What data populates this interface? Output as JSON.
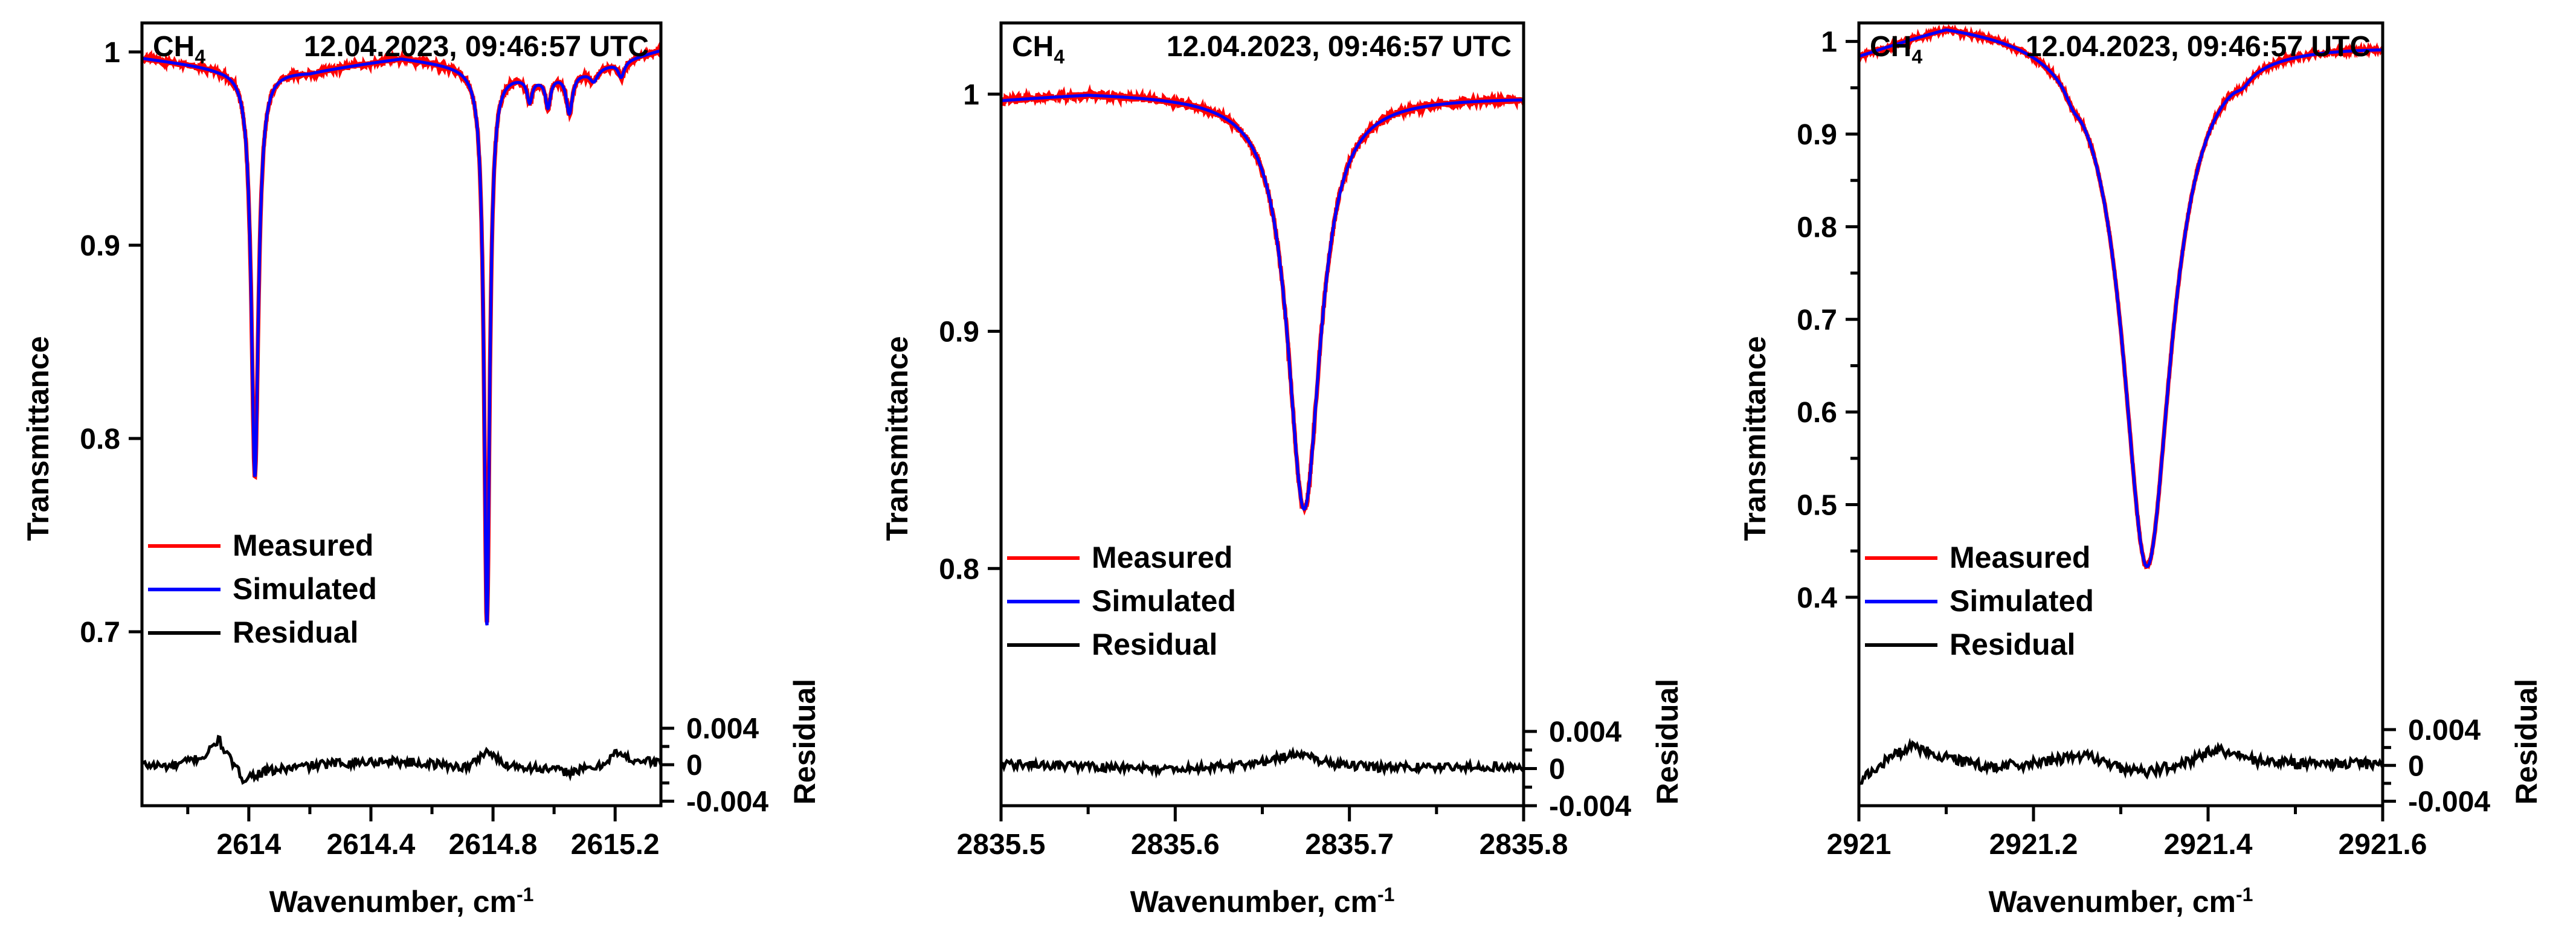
{
  "figure": {
    "background": "#ffffff"
  },
  "chart_data": [
    {
      "type": "line",
      "species": "CH",
      "species_subscript": "4",
      "timestamp": "12.04.2023, 09:46:57 UTC",
      "xlabel": "Wavenumber, cm",
      "xlabel_superscript": "-1",
      "ylabel": "Transmittance",
      "y2label": "Residual",
      "xlim": [
        2613.65,
        2615.35
      ],
      "ylim": [
        0.61,
        1.015
      ],
      "residual_lim": [
        -0.0045,
        0.0065
      ],
      "x_ticks": [
        2614,
        2614.4,
        2614.8,
        2615.2
      ],
      "x_tick_labels": [
        "2614",
        "2614.4",
        "2614.8",
        "2615.2"
      ],
      "x_minor_ticks": [
        2613.8,
        2614.2,
        2614.6,
        2615.0
      ],
      "y_ticks": [
        0.7,
        0.8,
        0.9,
        1.0
      ],
      "y_tick_labels": [
        "0.7",
        "0.8",
        "0.9",
        "1"
      ],
      "residual_ticks": [
        0.004,
        0,
        -0.004
      ],
      "residual_tick_labels": [
        "0.004",
        "0",
        "-0.004"
      ],
      "residual_minor_ticks": [
        0.002,
        -0.002
      ],
      "legend": {
        "placement": "lower-left",
        "entries": [
          {
            "label": "Measured",
            "color": "#ff0000"
          },
          {
            "label": "Simulated",
            "color": "#0000ff"
          },
          {
            "label": "Residual",
            "color": "#000000"
          }
        ]
      },
      "baseline": {
        "x": [
          2613.65,
          2613.9,
          2614.2,
          2614.5,
          2614.7,
          2614.95,
          2615.1,
          2615.35
        ],
        "y": [
          0.997,
          0.992,
          0.99,
          0.997,
          0.993,
          0.987,
          0.99,
          1.001
        ]
      },
      "lines": [
        {
          "center": 2614.02,
          "depth": 0.211,
          "width": 0.014
        },
        {
          "center": 2614.78,
          "depth": 0.288,
          "width": 0.011
        },
        {
          "center": 2614.92,
          "depth": 0.012,
          "width": 0.01
        },
        {
          "center": 2614.98,
          "depth": 0.015,
          "width": 0.01
        },
        {
          "center": 2615.05,
          "depth": 0.02,
          "width": 0.012
        },
        {
          "center": 2615.13,
          "depth": 0.006,
          "width": 0.015
        },
        {
          "center": 2615.22,
          "depth": 0.008,
          "width": 0.012
        }
      ],
      "residual": {
        "x": [
          2613.65,
          2613.75,
          2613.82,
          2613.86,
          2613.9,
          2613.94,
          2613.98,
          2614.05,
          2614.15,
          2614.3,
          2614.45,
          2614.6,
          2614.72,
          2614.78,
          2614.83,
          2614.95,
          2615.05,
          2615.15,
          2615.2,
          2615.25,
          2615.35
        ],
        "y": [
          0.0,
          -0.0002,
          0.0006,
          0.001,
          0.0028,
          0.0005,
          -0.0015,
          -0.0008,
          -0.0003,
          0.0002,
          0.0004,
          0.0001,
          -0.0003,
          0.0016,
          0.0001,
          -0.0004,
          -0.0008,
          -0.0002,
          0.0013,
          0.0006,
          0.0002
        ]
      },
      "residual_noise": 0.0005
    },
    {
      "type": "line",
      "species": "CH",
      "species_subscript": "4",
      "timestamp": "12.04.2023, 09:46:57 UTC",
      "xlabel": "Wavenumber, cm",
      "xlabel_superscript": "-1",
      "ylabel": "Transmittance",
      "y2label": "Residual",
      "xlim": [
        2835.5,
        2835.8
      ],
      "ylim": [
        0.7,
        1.03
      ],
      "residual_lim": [
        -0.004,
        0.0068
      ],
      "x_ticks": [
        2835.5,
        2835.6,
        2835.7,
        2835.8
      ],
      "x_tick_labels": [
        "2835.5",
        "2835.6",
        "2835.7",
        "2835.8"
      ],
      "x_minor_ticks": [
        2835.55,
        2835.65,
        2835.75
      ],
      "y_ticks": [
        0.8,
        0.9,
        1.0
      ],
      "y_tick_labels": [
        "0.8",
        "0.9",
        "1"
      ],
      "residual_ticks": [
        0.004,
        0,
        -0.004
      ],
      "residual_tick_labels": [
        "0.004",
        "0",
        "-0.004"
      ],
      "residual_minor_ticks": [
        0.002,
        -0.002
      ],
      "legend": {
        "placement": "lower-left",
        "entries": [
          {
            "label": "Measured",
            "color": "#ff0000"
          },
          {
            "label": "Simulated",
            "color": "#0000ff"
          },
          {
            "label": "Residual",
            "color": "#000000"
          }
        ]
      },
      "baseline": {
        "x": [
          2835.5,
          2835.55,
          2835.8
        ],
        "y": [
          0.998,
          1.001,
          0.999
        ]
      },
      "lines": [
        {
          "center": 2835.674,
          "depth": 0.175,
          "width": 0.0115
        }
      ],
      "residual": {
        "x": [
          2835.5,
          2835.55,
          2835.6,
          2835.64,
          2835.67,
          2835.69,
          2835.72,
          2835.75,
          2835.8
        ],
        "y": [
          0.0005,
          0.0002,
          -0.0001,
          0.0004,
          0.0016,
          0.0005,
          0.0001,
          0.0002,
          0.0002
        ]
      },
      "residual_noise": 0.00045
    },
    {
      "type": "line",
      "species": "CH",
      "species_subscript": "4",
      "timestamp": "12.04.2023, 09:46:57 UTC",
      "xlabel": "Wavenumber, cm",
      "xlabel_superscript": "-1",
      "ylabel": "Transmittance",
      "y2label": "Residual",
      "xlim": [
        2921.0,
        2921.6
      ],
      "ylim": [
        0.175,
        1.02
      ],
      "residual_lim": [
        -0.0045,
        0.0067
      ],
      "x_ticks": [
        2921.0,
        2921.2,
        2921.4,
        2921.6
      ],
      "x_tick_labels": [
        "2921",
        "2921.2",
        "2921.4",
        "2921.6"
      ],
      "x_minor_ticks": [
        2921.1,
        2921.3,
        2921.5
      ],
      "y_ticks": [
        0.4,
        0.5,
        0.6,
        0.7,
        0.8,
        0.9,
        1.0
      ],
      "y_tick_labels": [
        "0.4",
        "0.5",
        "0.6",
        "0.7",
        "0.8",
        "0.9",
        "1"
      ],
      "y_minor_ticks": [
        0.45,
        0.55,
        0.65,
        0.75,
        0.85,
        0.95
      ],
      "residual_ticks": [
        0.004,
        0,
        -0.004
      ],
      "residual_tick_labels": [
        "0.004",
        "0",
        "-0.004"
      ],
      "residual_minor_ticks": [
        0.002,
        -0.002
      ],
      "legend": {
        "placement": "lower-left",
        "entries": [
          {
            "label": "Measured",
            "color": "#ff0000"
          },
          {
            "label": "Simulated",
            "color": "#0000ff"
          },
          {
            "label": "Residual",
            "color": "#000000"
          }
        ]
      },
      "baseline": {
        "x": [
          2921.0,
          2921.1,
          2921.6
        ],
        "y": [
          0.99,
          1.025,
          1.0
        ]
      },
      "lines": [
        {
          "center": 2921.33,
          "depth": 0.58,
          "width": 0.034
        },
        {
          "center": 2921.245,
          "depth": 0.012,
          "width": 0.01
        },
        {
          "center": 2921.44,
          "depth": 0.008,
          "width": 0.01
        }
      ],
      "residual": {
        "x": [
          2921.0,
          2921.03,
          2921.06,
          2921.1,
          2921.15,
          2921.2,
          2921.26,
          2921.3,
          2921.33,
          2921.37,
          2921.41,
          2921.45,
          2921.5,
          2921.55,
          2921.6
        ],
        "y": [
          -0.002,
          0.0005,
          0.0022,
          0.0008,
          -0.0002,
          0.0002,
          0.0012,
          -0.0003,
          -0.0008,
          0.0002,
          0.0018,
          0.0006,
          0.0002,
          0.0002,
          0.0001
        ]
      },
      "residual_noise": 0.0006
    }
  ]
}
